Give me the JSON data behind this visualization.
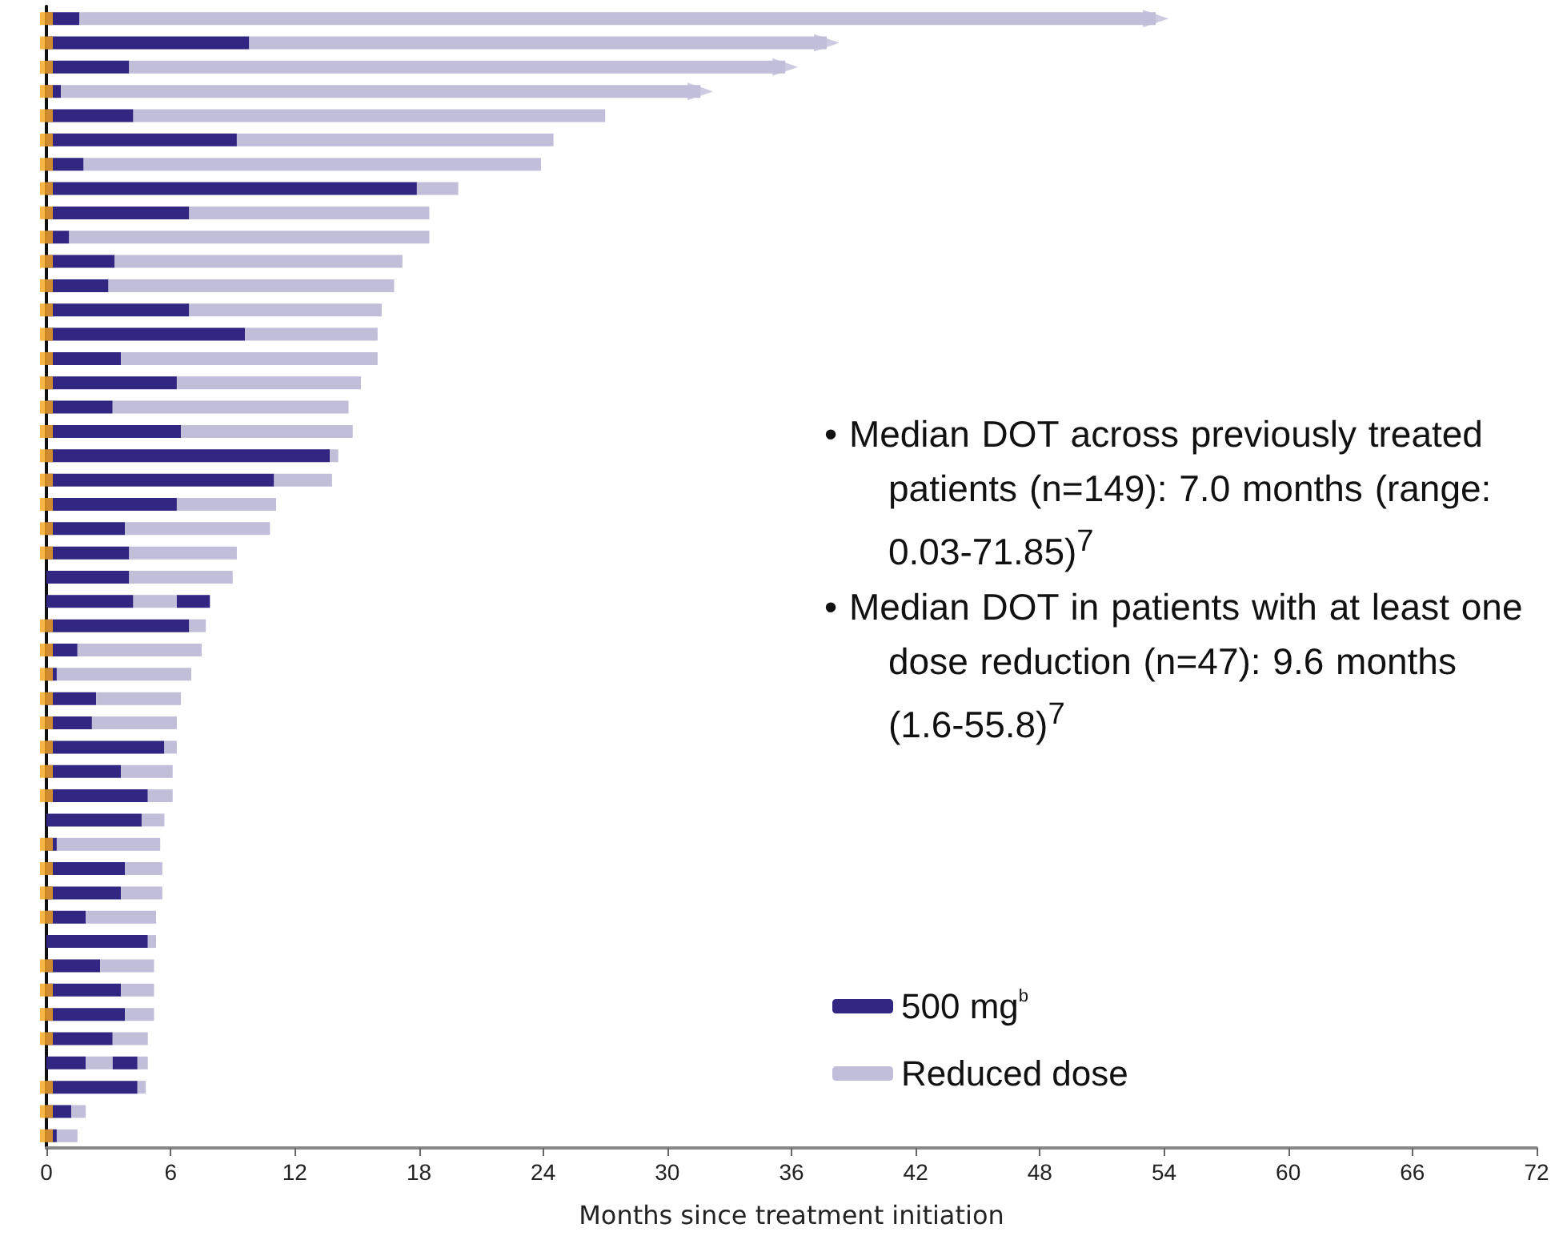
{
  "chart_data": {
    "type": "bar",
    "orientation": "horizontal",
    "stacked": true,
    "categories": [
      null,
      null,
      null,
      null,
      null,
      null,
      null,
      null,
      null,
      null,
      null,
      null,
      null,
      null,
      null,
      null,
      null,
      null,
      null,
      null,
      null,
      null,
      null,
      null,
      null,
      null,
      null,
      null,
      null,
      null,
      null,
      null,
      null,
      null,
      null,
      null,
      null,
      null,
      null,
      null,
      null,
      null,
      null,
      null,
      null,
      null,
      null
    ],
    "series": [
      {
        "name": "500 mg$^{b}$",
        "color": "#312783",
        "values": [
          1.6,
          9.8,
          4.0,
          0.7,
          4.2,
          9.2,
          1.8,
          17.9,
          6.9,
          1.1,
          3.3,
          3.0,
          6.9,
          9.6,
          3.6,
          6.3,
          3.2,
          6.5,
          13.7,
          11.0,
          6.3,
          3.8,
          4.0,
          4.0,
          4.2,
          6.9,
          1.5,
          0.5,
          2.4,
          2.2,
          5.7,
          3.6,
          4.9,
          4.6,
          0.5,
          3.8,
          3.6,
          1.9,
          4.9,
          2.6,
          3.6,
          3.8,
          3.2,
          1.9,
          4.4,
          1.2,
          0.5
        ]
      },
      {
        "name": "Reduced dose",
        "color": "#c1bed9",
        "values": [
          52.0,
          27.9,
          31.7,
          30.9,
          22.8,
          15.3,
          22.1,
          2.0,
          11.6,
          17.4,
          13.9,
          13.8,
          9.3,
          6.4,
          12.4,
          8.9,
          11.4,
          8.3,
          0.4,
          2.8,
          4.8,
          7.0,
          5.2,
          5.0,
          2.1,
          0.8,
          6.0,
          6.5,
          4.1,
          4.1,
          0.6,
          2.5,
          1.2,
          1.1,
          5.0,
          1.8,
          2.0,
          3.4,
          0.4,
          2.6,
          1.6,
          1.4,
          1.7,
          1.3,
          0.4,
          0.7,
          1.0
        ]
      },
      {
        "color": "#312783",
        "values": [
          null,
          null,
          null,
          null,
          null,
          null,
          null,
          null,
          null,
          null,
          null,
          null,
          null,
          null,
          null,
          null,
          null,
          null,
          null,
          null,
          null,
          null,
          null,
          null,
          1.6,
          null,
          null,
          null,
          null,
          null,
          null,
          null,
          null,
          null,
          null,
          null,
          null,
          null,
          null,
          null,
          null,
          null,
          null,
          1.2,
          null,
          null,
          null
        ]
      },
      {
        "color": "#c1bed9",
        "values": [
          null,
          null,
          null,
          null,
          null,
          null,
          null,
          null,
          null,
          null,
          null,
          null,
          null,
          null,
          null,
          null,
          null,
          null,
          null,
          null,
          null,
          null,
          null,
          null,
          null,
          null,
          null,
          null,
          null,
          null,
          null,
          null,
          null,
          null,
          null,
          null,
          null,
          null,
          null,
          null,
          null,
          null,
          null,
          0.5,
          null,
          null,
          null
        ]
      },
      {
        "type": "scatter",
        "marker": "triangle",
        "color": "#c1bed9",
        "values": [
          53.6,
          37.7,
          35.7,
          31.6,
          null,
          null,
          null,
          null,
          null,
          null,
          null,
          null,
          null,
          null,
          null,
          null,
          null,
          null,
          null,
          null,
          null,
          null,
          null,
          null,
          null,
          null,
          null,
          null,
          null,
          null,
          null,
          null,
          null,
          null,
          null,
          null,
          null,
          null,
          null,
          null,
          null,
          null,
          null,
          null,
          null,
          null,
          null
        ]
      },
      {
        "type": "scatter",
        "marker": "square",
        "color": "#f7a51c",
        "values": [
          0,
          0,
          0,
          0,
          0,
          0,
          0,
          0,
          0,
          0,
          0,
          0,
          0,
          0,
          0,
          0,
          0,
          0,
          0,
          0,
          0,
          0,
          0,
          null,
          null,
          0,
          0,
          0,
          0,
          0,
          0,
          0,
          0,
          null,
          0,
          0,
          0,
          0,
          null,
          0,
          0,
          0,
          0,
          null,
          0,
          0,
          0
        ]
      }
    ],
    "xlabel": "Months since treatment initiation",
    "xlim": [
      0,
      72
    ],
    "xticks": [
      0,
      6,
      12,
      18,
      24,
      30,
      36,
      42,
      48,
      54,
      60,
      66,
      72
    ],
    "tick_labels": "x",
    "grid": false,
    "legend": "bottom right",
    "annotations": [
      "• Median DOT across previously treated patients (n=149): 7.0 months (range: 0.03-71.85)$^{7}$",
      "• Median DOT in patients with at least one dose reduction (n=47): 9.6 months (1.6-55.8)$^{7}$"
    ]
  }
}
